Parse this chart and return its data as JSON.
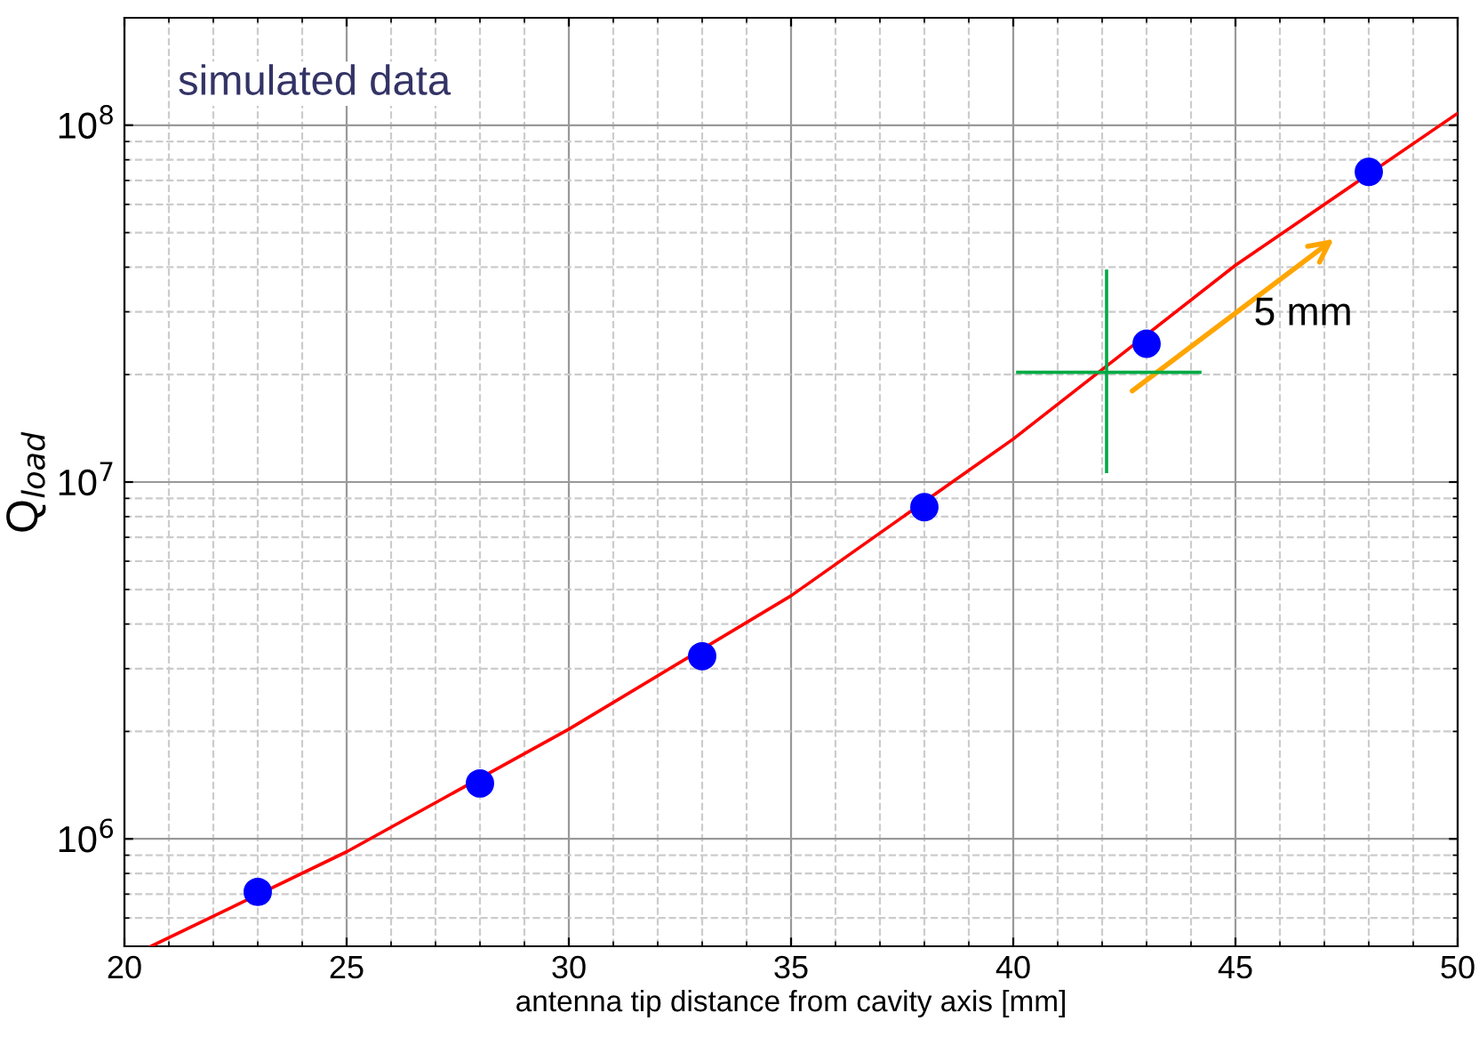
{
  "chart_data": {
    "type": "scatter",
    "xlabel": "antenna tip distance from cavity axis [mm]",
    "ylabel": "Q$_{load}$",
    "annotations": [
      "simulated data",
      "5 mm"
    ],
    "series": [
      {
        "color": "#0000ff",
        "marker": "circle",
        "x": [
          23,
          28,
          33,
          38,
          43,
          48
        ],
        "values": [
          710000.0,
          1430000.0,
          3250000.0,
          8500000.0,
          24400000.0,
          74000000.0
        ]
      },
      {
        "type": "line",
        "color": "#ff0000",
        "marker": "none",
        "x": [
          20.6,
          25,
          30,
          35,
          40,
          45,
          50
        ],
        "values": [
          500000.0,
          920000.0,
          2030000.0,
          4800000.0,
          13200000.0,
          40500000.0,
          108000000.0
        ]
      },
      {
        "type": "line",
        "color": "#00aa44",
        "marker": "none",
        "x": [
          40.1,
          44.2
        ],
        "values": [
          20300000.0,
          20300000.0
        ]
      },
      {
        "type": "line",
        "color": "#00aa44",
        "marker": "none",
        "x": [
          42.1,
          42.1
        ],
        "values": [
          10700000.0,
          39000000.0
        ]
      }
    ],
    "log": "y",
    "grid": true,
    "legend": false,
    "xlim": [
      20,
      50
    ],
    "xticks": [
      20,
      25,
      30,
      35,
      40,
      45,
      50
    ],
    "ylim": [
      500000.0,
      200000000.0
    ],
    "yticks": [
      {
        "value": 1000000.0,
        "label": "10$^{6}$"
      },
      {
        "value": 10000000.0,
        "label": "10$^{7}$"
      },
      {
        "value": 100000000.0,
        "label": "10$^{8}$"
      }
    ]
  }
}
